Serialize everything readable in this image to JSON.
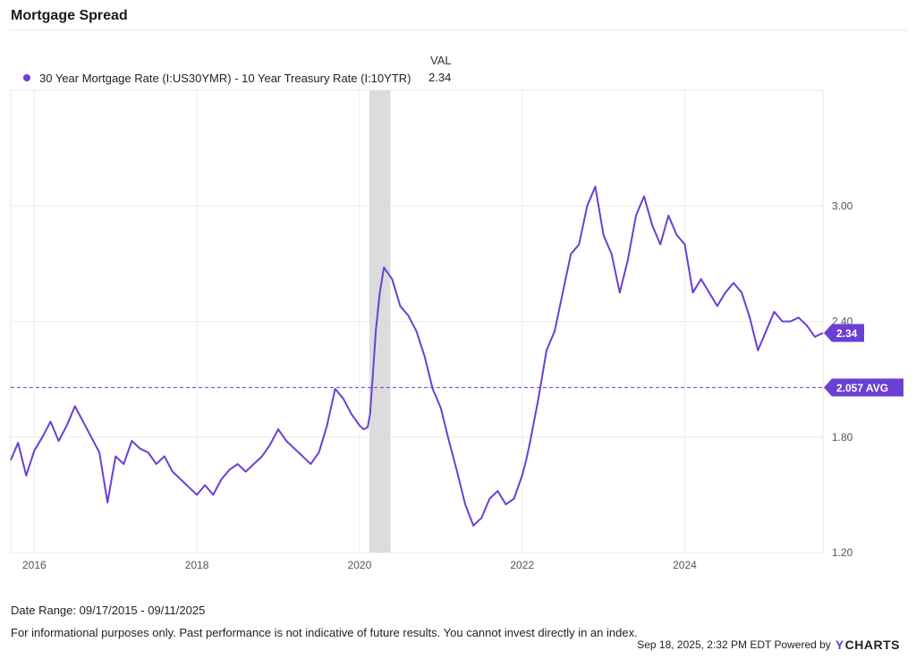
{
  "title": "Mortgage Spread",
  "legend": {
    "header": "VAL",
    "series_name": "30 Year Mortgage Rate (I:US30YMR) - 10 Year Treasury Rate (I:10YTR)",
    "value": "2.34",
    "color": "#6b3fd4"
  },
  "footer": {
    "date_range": "Date Range: 09/17/2015 - 09/11/2025",
    "disclaimer": "For informational purposes only. Past performance is not indicative of future results. You cannot invest directly in an index.",
    "timestamp": "Sep 18, 2025, 2:32 PM EDT Powered by",
    "brand_mark": "Y",
    "brand_text": "CHARTS"
  },
  "chart_data": {
    "type": "line",
    "title": "Mortgage Spread",
    "xlabel": "",
    "ylabel": "",
    "x_range": [
      2015.71,
      2025.7
    ],
    "ylim": [
      1.2,
      3.6
    ],
    "yticks": [
      1.2,
      1.8,
      2.4,
      3.0
    ],
    "ytick_labels": [
      "1.20",
      "1.80",
      "2.40",
      "3.00"
    ],
    "xticks": [
      2016,
      2018,
      2020,
      2022,
      2024
    ],
    "xtick_labels": [
      "2016",
      "2018",
      "2020",
      "2022",
      "2024"
    ],
    "grid": true,
    "legend_position": "top-left",
    "average": {
      "value": 2.057,
      "label": "2.057 AVG"
    },
    "last_value": {
      "value": 2.34,
      "label": "2.34"
    },
    "shaded_period": {
      "start": 2020.12,
      "end": 2020.38
    },
    "series": [
      {
        "name": "30 Year Mortgage Rate (I:US30YMR) - 10 Year Treasury Rate (I:10YTR)",
        "color": "#6b3fd4",
        "points": [
          [
            2015.71,
            1.68
          ],
          [
            2015.8,
            1.77
          ],
          [
            2015.9,
            1.6
          ],
          [
            2016.0,
            1.73
          ],
          [
            2016.1,
            1.8
          ],
          [
            2016.2,
            1.88
          ],
          [
            2016.3,
            1.78
          ],
          [
            2016.4,
            1.86
          ],
          [
            2016.5,
            1.96
          ],
          [
            2016.6,
            1.88
          ],
          [
            2016.7,
            1.8
          ],
          [
            2016.8,
            1.72
          ],
          [
            2016.9,
            1.46
          ],
          [
            2017.0,
            1.7
          ],
          [
            2017.1,
            1.66
          ],
          [
            2017.2,
            1.78
          ],
          [
            2017.3,
            1.74
          ],
          [
            2017.4,
            1.72
          ],
          [
            2017.5,
            1.66
          ],
          [
            2017.6,
            1.7
          ],
          [
            2017.7,
            1.62
          ],
          [
            2017.8,
            1.58
          ],
          [
            2017.9,
            1.54
          ],
          [
            2018.0,
            1.5
          ],
          [
            2018.1,
            1.55
          ],
          [
            2018.2,
            1.5
          ],
          [
            2018.3,
            1.58
          ],
          [
            2018.4,
            1.63
          ],
          [
            2018.5,
            1.66
          ],
          [
            2018.6,
            1.62
          ],
          [
            2018.7,
            1.66
          ],
          [
            2018.8,
            1.7
          ],
          [
            2018.9,
            1.76
          ],
          [
            2019.0,
            1.84
          ],
          [
            2019.1,
            1.78
          ],
          [
            2019.2,
            1.74
          ],
          [
            2019.3,
            1.7
          ],
          [
            2019.4,
            1.66
          ],
          [
            2019.5,
            1.72
          ],
          [
            2019.6,
            1.86
          ],
          [
            2019.7,
            2.05
          ],
          [
            2019.8,
            2.0
          ],
          [
            2019.9,
            1.92
          ],
          [
            2020.0,
            1.86
          ],
          [
            2020.05,
            1.84
          ],
          [
            2020.1,
            1.85
          ],
          [
            2020.13,
            1.92
          ],
          [
            2020.16,
            2.1
          ],
          [
            2020.2,
            2.35
          ],
          [
            2020.25,
            2.55
          ],
          [
            2020.3,
            2.68
          ],
          [
            2020.4,
            2.62
          ],
          [
            2020.5,
            2.48
          ],
          [
            2020.6,
            2.43
          ],
          [
            2020.7,
            2.35
          ],
          [
            2020.8,
            2.22
          ],
          [
            2020.9,
            2.05
          ],
          [
            2021.0,
            1.95
          ],
          [
            2021.1,
            1.78
          ],
          [
            2021.2,
            1.62
          ],
          [
            2021.3,
            1.45
          ],
          [
            2021.4,
            1.34
          ],
          [
            2021.5,
            1.38
          ],
          [
            2021.6,
            1.48
          ],
          [
            2021.7,
            1.52
          ],
          [
            2021.8,
            1.45
          ],
          [
            2021.9,
            1.48
          ],
          [
            2022.0,
            1.6
          ],
          [
            2022.05,
            1.68
          ],
          [
            2022.1,
            1.78
          ],
          [
            2022.2,
            2.0
          ],
          [
            2022.3,
            2.25
          ],
          [
            2022.4,
            2.35
          ],
          [
            2022.5,
            2.55
          ],
          [
            2022.6,
            2.75
          ],
          [
            2022.7,
            2.8
          ],
          [
            2022.8,
            3.0
          ],
          [
            2022.9,
            3.1
          ],
          [
            2023.0,
            2.85
          ],
          [
            2023.1,
            2.75
          ],
          [
            2023.2,
            2.55
          ],
          [
            2023.3,
            2.72
          ],
          [
            2023.4,
            2.95
          ],
          [
            2023.5,
            3.05
          ],
          [
            2023.6,
            2.9
          ],
          [
            2023.7,
            2.8
          ],
          [
            2023.8,
            2.95
          ],
          [
            2023.9,
            2.85
          ],
          [
            2024.0,
            2.8
          ],
          [
            2024.1,
            2.55
          ],
          [
            2024.2,
            2.62
          ],
          [
            2024.3,
            2.55
          ],
          [
            2024.4,
            2.48
          ],
          [
            2024.5,
            2.55
          ],
          [
            2024.6,
            2.6
          ],
          [
            2024.7,
            2.55
          ],
          [
            2024.8,
            2.42
          ],
          [
            2024.9,
            2.25
          ],
          [
            2025.0,
            2.35
          ],
          [
            2025.1,
            2.45
          ],
          [
            2025.2,
            2.4
          ],
          [
            2025.3,
            2.4
          ],
          [
            2025.4,
            2.42
          ],
          [
            2025.5,
            2.38
          ],
          [
            2025.6,
            2.32
          ],
          [
            2025.7,
            2.34
          ]
        ]
      }
    ]
  }
}
